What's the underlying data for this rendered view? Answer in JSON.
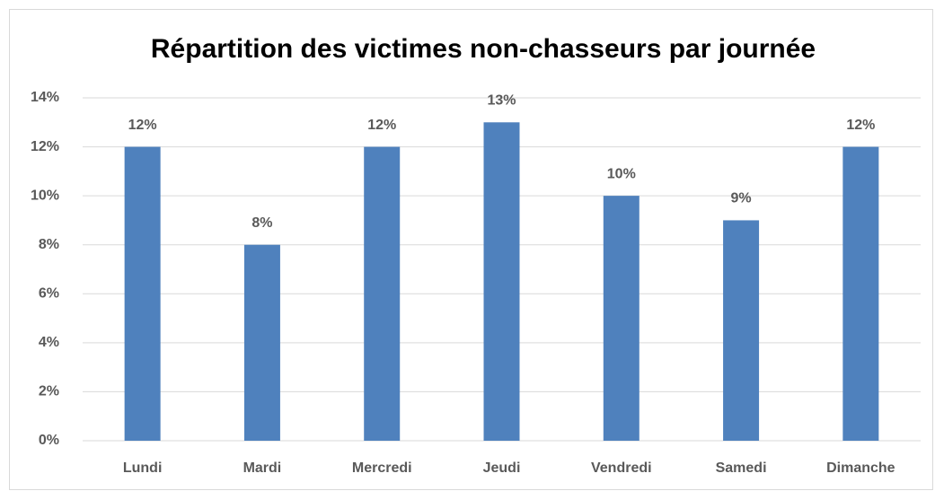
{
  "chart_data": {
    "type": "bar",
    "title": "Répartition des victimes non-chasseurs par journée",
    "categories": [
      "Lundi",
      "Mardi",
      "Mercredi",
      "Jeudi",
      "Vendredi",
      "Samedi",
      "Dimanche"
    ],
    "values": [
      12,
      8,
      12,
      13,
      10,
      9,
      12
    ],
    "value_labels": [
      "12%",
      "8%",
      "12%",
      "13%",
      "10%",
      "9%",
      "12%"
    ],
    "color": "#4f81bd",
    "ylim": [
      0,
      14
    ],
    "yticks": [
      {
        "value": 0,
        "label": "0%"
      },
      {
        "value": 2,
        "label": "2%"
      },
      {
        "value": 4,
        "label": "4%"
      },
      {
        "value": 6,
        "label": "6%"
      },
      {
        "value": 8,
        "label": "8%"
      },
      {
        "value": 10,
        "label": "10%"
      },
      {
        "value": 12,
        "label": "12%"
      },
      {
        "value": 14,
        "label": "14%"
      }
    ],
    "grid": true
  }
}
